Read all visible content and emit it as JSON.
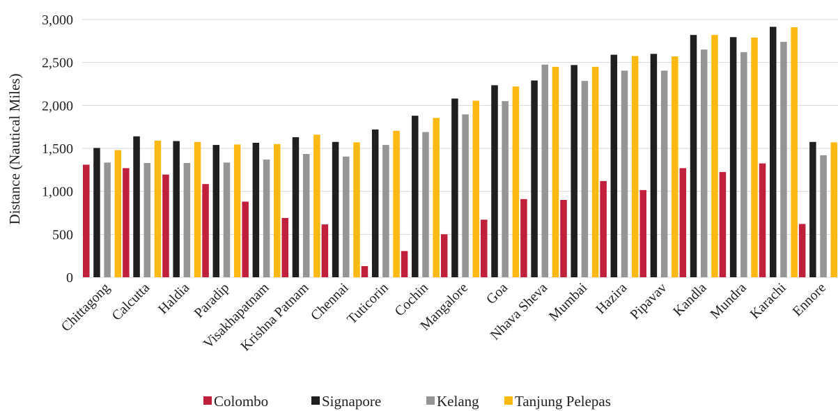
{
  "chart_data": {
    "type": "bar",
    "title": "",
    "xlabel": "",
    "ylabel": "Distance (Nautical Miles)",
    "ylim": [
      0,
      3000
    ],
    "yticks": [
      0,
      500,
      1000,
      1500,
      2000,
      2500,
      3000
    ],
    "ytick_labels": [
      "0",
      "500",
      "1,000",
      "1,500",
      "2,000",
      "2,500",
      "3,000"
    ],
    "grid": true,
    "legend_position": "bottom",
    "categories": [
      "Chittagong",
      "Calcutta",
      "Haldia",
      "Paradip",
      "Visakhapatnam",
      "Krishna Patnam",
      "Chennai",
      "Tuticorin",
      "Cochin",
      "Mangalore",
      "Goa",
      "Nhava Sheva",
      "Mumbai",
      "Hazira",
      "Pipavav",
      "Kandla",
      "Mundra",
      "Karachi",
      "Ennore"
    ],
    "series": [
      {
        "name": "Colombo",
        "color": "#c0203c",
        "values": [
          1310,
          1270,
          1195,
          1085,
          880,
          690,
          615,
          130,
          305,
          500,
          670,
          910,
          900,
          1120,
          1015,
          1270,
          1225,
          1325,
          620
        ]
      },
      {
        "name": "Signapore",
        "color": "#1f1f1f",
        "values": [
          1505,
          1640,
          1585,
          1540,
          1565,
          1630,
          1575,
          1720,
          1880,
          2080,
          2235,
          2290,
          2470,
          2590,
          2600,
          2820,
          2795,
          2915,
          1575
        ]
      },
      {
        "name": "Kelang",
        "color": "#959595",
        "values": [
          1335,
          1330,
          1330,
          1335,
          1370,
          1435,
          1405,
          1540,
          1690,
          1895,
          2050,
          2475,
          2285,
          2405,
          2405,
          2650,
          2620,
          2740,
          1420
        ]
      },
      {
        "name": "Tanjung Pelepas",
        "color": "#fdb913",
        "values": [
          1480,
          1590,
          1575,
          1545,
          1550,
          1660,
          1570,
          1705,
          1855,
          2055,
          2220,
          2450,
          2450,
          2575,
          2570,
          2820,
          2790,
          2910,
          1570
        ]
      }
    ]
  }
}
